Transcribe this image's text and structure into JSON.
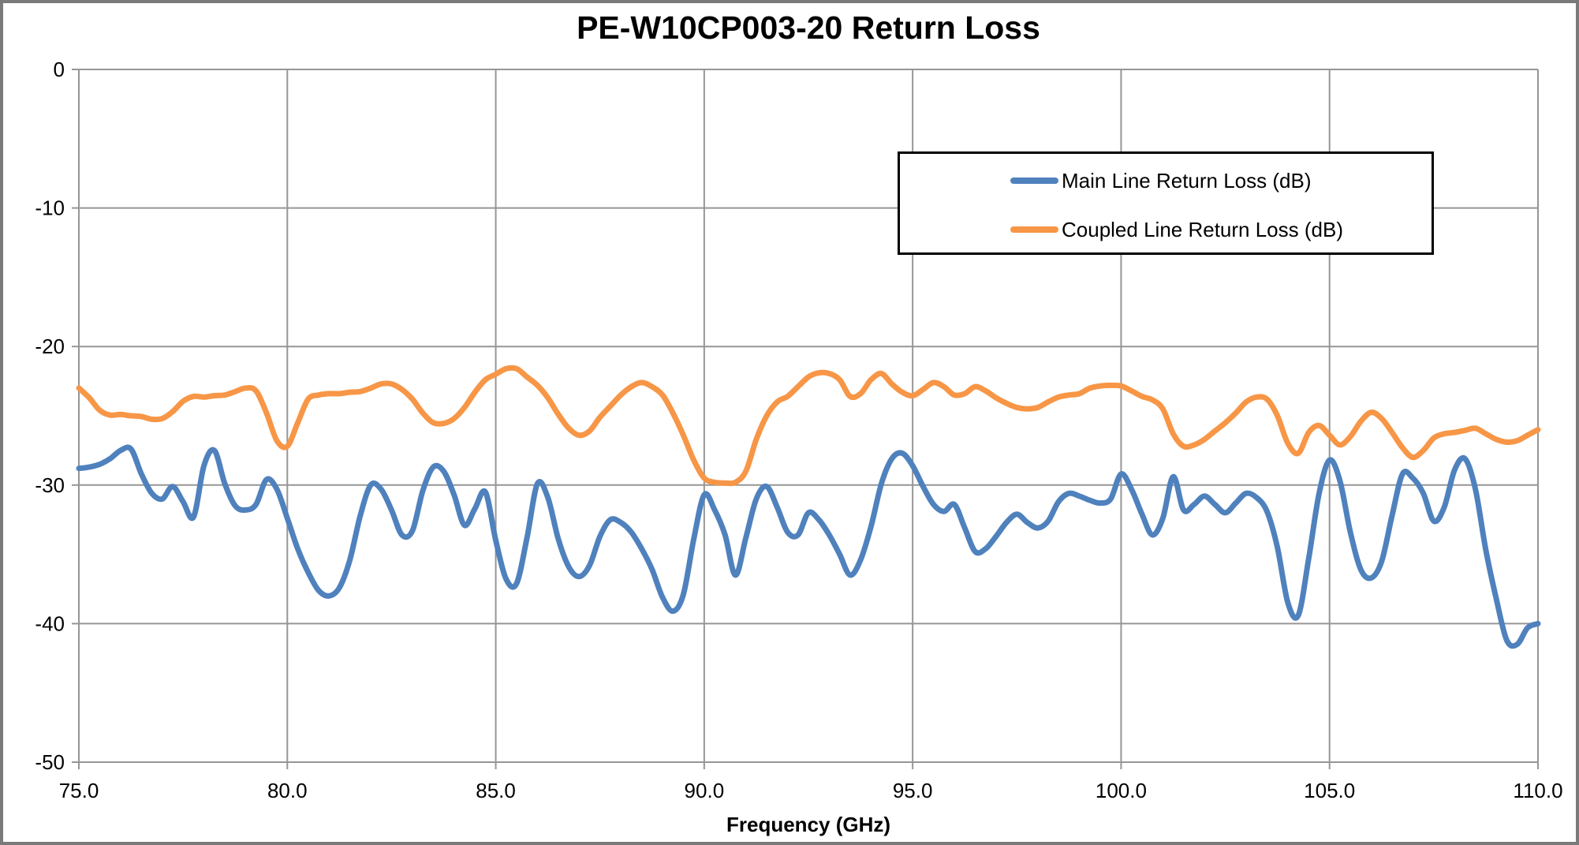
{
  "page": {
    "background": "#ffffff",
    "frame_border_color": "#7a7a7a"
  },
  "chart": {
    "grid_color": "#969696",
    "axis_color": "#969696",
    "text_color": "#000000",
    "legend_border_color": "#000000",
    "series_line_width": 7
  },
  "chart_data": {
    "type": "line",
    "title": "PE-W10CP003-20 Return Loss",
    "xlabel": "Frequency (GHz)",
    "ylabel": "",
    "xlim": [
      75,
      110
    ],
    "ylim": [
      -50,
      0
    ],
    "grid": true,
    "legend_position": "upper-right-inside",
    "x_ticks": [
      75,
      80,
      85,
      90,
      95,
      100,
      105,
      110
    ],
    "x_tick_labels": [
      "75.0",
      "80.0",
      "85.0",
      "90.0",
      "95.0",
      "100.0",
      "105.0",
      "110.0"
    ],
    "y_ticks": [
      0,
      -10,
      -20,
      -30,
      -40,
      -50
    ],
    "y_tick_labels": [
      "0",
      "-10",
      "-20",
      "-30",
      "-40",
      "-50"
    ],
    "x_start": 75,
    "x_step": 0.25,
    "series": [
      {
        "name": "Main Line Return Loss (dB)",
        "color": "#4F81BD",
        "values": [
          -28.8,
          -28.7,
          -28.5,
          -28.1,
          -27.5,
          -27.4,
          -29.2,
          -30.6,
          -31.0,
          -30.1,
          -31.2,
          -32.3,
          -28.6,
          -27.5,
          -29.9,
          -31.5,
          -31.8,
          -31.4,
          -29.6,
          -30.3,
          -32.4,
          -34.6,
          -36.3,
          -37.6,
          -38.0,
          -37.4,
          -35.4,
          -32.2,
          -30.0,
          -30.3,
          -31.8,
          -33.6,
          -33.3,
          -30.4,
          -28.7,
          -29.0,
          -30.7,
          -32.9,
          -31.7,
          -30.5,
          -34.0,
          -36.8,
          -37.1,
          -33.8,
          -29.9,
          -30.9,
          -33.9,
          -35.9,
          -36.6,
          -35.8,
          -33.7,
          -32.5,
          -32.7,
          -33.4,
          -34.6,
          -36.1,
          -38.1,
          -39.1,
          -37.9,
          -33.9,
          -30.7,
          -31.8,
          -33.6,
          -36.5,
          -33.8,
          -31.0,
          -30.1,
          -31.6,
          -33.4,
          -33.6,
          -32.0,
          -32.5,
          -33.6,
          -35.0,
          -36.5,
          -35.4,
          -33.0,
          -29.9,
          -28.1,
          -27.7,
          -28.6,
          -30.1,
          -31.4,
          -31.9,
          -31.4,
          -33.1,
          -34.8,
          -34.6,
          -33.7,
          -32.7,
          -32.1,
          -32.7,
          -33.1,
          -32.6,
          -31.2,
          -30.6,
          -30.8,
          -31.1,
          -31.3,
          -31.0,
          -29.2,
          -30.3,
          -32.1,
          -33.6,
          -32.4,
          -29.4,
          -31.8,
          -31.4,
          -30.8,
          -31.4,
          -32.0,
          -31.3,
          -30.6,
          -30.9,
          -31.9,
          -34.5,
          -38.5,
          -39.4,
          -35.3,
          -30.6,
          -28.2,
          -29.7,
          -33.4,
          -36.1,
          -36.7,
          -35.5,
          -32.2,
          -29.2,
          -29.5,
          -30.6,
          -32.6,
          -31.6,
          -28.9,
          -28.1,
          -30.3,
          -34.7,
          -38.2,
          -41.2,
          -41.5,
          -40.3,
          -40.0
        ]
      },
      {
        "name": "Coupled Line Return Loss (dB)",
        "color": "#F79646",
        "values": [
          -23.0,
          -23.7,
          -24.6,
          -24.95,
          -24.9,
          -25.0,
          -25.05,
          -25.25,
          -25.2,
          -24.7,
          -23.95,
          -23.6,
          -23.65,
          -23.55,
          -23.5,
          -23.25,
          -23.0,
          -23.2,
          -24.8,
          -26.8,
          -27.2,
          -25.5,
          -23.8,
          -23.5,
          -23.4,
          -23.4,
          -23.3,
          -23.25,
          -23.0,
          -22.7,
          -22.7,
          -23.1,
          -23.8,
          -24.8,
          -25.5,
          -25.55,
          -25.2,
          -24.4,
          -23.3,
          -22.4,
          -22.0,
          -21.6,
          -21.6,
          -22.2,
          -22.8,
          -23.7,
          -24.9,
          -25.9,
          -26.4,
          -26.1,
          -25.1,
          -24.3,
          -23.5,
          -22.9,
          -22.6,
          -22.9,
          -23.5,
          -24.8,
          -26.4,
          -28.2,
          -29.5,
          -29.8,
          -29.85,
          -29.8,
          -29.0,
          -26.7,
          -25.0,
          -24.0,
          -23.6,
          -22.9,
          -22.2,
          -21.9,
          -21.95,
          -22.4,
          -23.6,
          -23.4,
          -22.4,
          -21.95,
          -22.7,
          -23.3,
          -23.55,
          -23.1,
          -22.6,
          -22.9,
          -23.5,
          -23.4,
          -22.9,
          -23.2,
          -23.7,
          -24.1,
          -24.4,
          -24.5,
          -24.4,
          -24.0,
          -23.65,
          -23.5,
          -23.4,
          -23.0,
          -22.85,
          -22.8,
          -22.85,
          -23.2,
          -23.6,
          -23.85,
          -24.5,
          -26.3,
          -27.2,
          -27.1,
          -26.7,
          -26.1,
          -25.5,
          -24.8,
          -24.0,
          -23.65,
          -23.8,
          -25.0,
          -27.0,
          -27.7,
          -26.2,
          -25.7,
          -26.4,
          -27.1,
          -26.5,
          -25.4,
          -24.75,
          -25.2,
          -26.2,
          -27.3,
          -28.0,
          -27.5,
          -26.6,
          -26.3,
          -26.2,
          -26.05,
          -25.9,
          -26.3,
          -26.7,
          -26.9,
          -26.8,
          -26.4,
          -26.0
        ]
      }
    ]
  }
}
